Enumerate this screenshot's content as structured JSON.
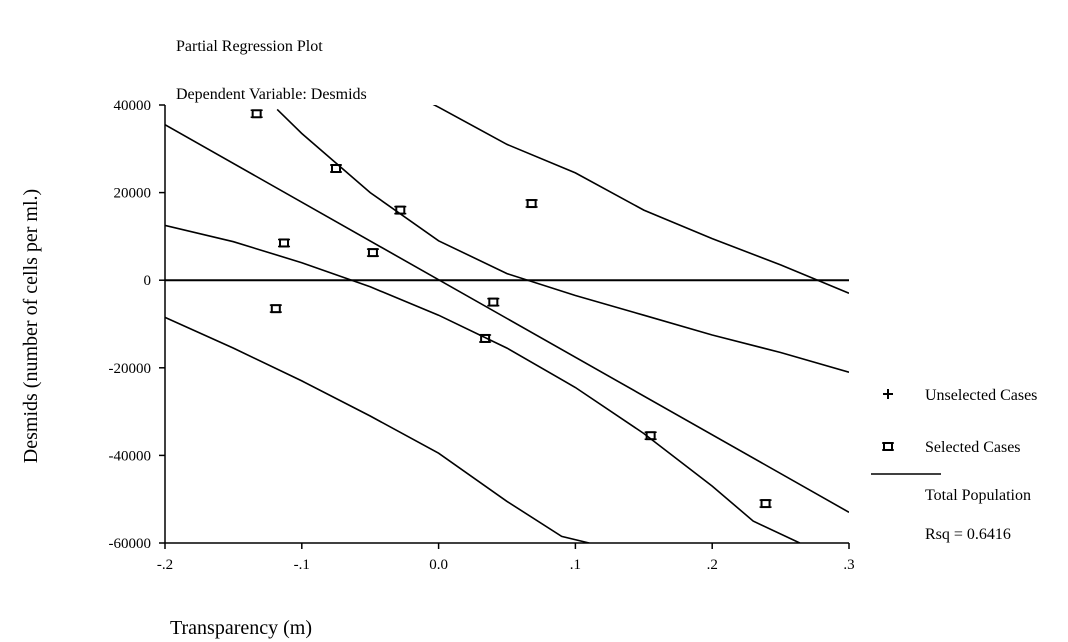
{
  "chart_data": {
    "type": "scatter",
    "title": "Partial Regression Plot",
    "subtitle": "Dependent Variable: Desmids",
    "xlabel": "Transparency (m)",
    "ylabel": "Desmids (number of cells per ml.)",
    "xlim": [
      -0.2,
      0.3
    ],
    "ylim": [
      -60000,
      40000
    ],
    "x_ticks": [
      {
        "value": -0.2,
        "label": "-.2"
      },
      {
        "value": -0.1,
        "label": "-.1"
      },
      {
        "value": 0.0,
        "label": "0.0"
      },
      {
        "value": 0.1,
        "label": ".1"
      },
      {
        "value": 0.2,
        "label": ".2"
      },
      {
        "value": 0.3,
        "label": ".3"
      }
    ],
    "y_ticks": [
      {
        "value": 40000,
        "label": "40000"
      },
      {
        "value": 20000,
        "label": "20000"
      },
      {
        "value": 0,
        "label": "0"
      },
      {
        "value": -20000,
        "label": "-20000"
      },
      {
        "value": -40000,
        "label": "-40000"
      },
      {
        "value": -60000,
        "label": "-60000"
      }
    ],
    "reference_line_y": 0,
    "points": [
      {
        "x": -0.133,
        "y": 38000
      },
      {
        "x": -0.075,
        "y": 25500
      },
      {
        "x": -0.028,
        "y": 16000
      },
      {
        "x": 0.068,
        "y": 17500
      },
      {
        "x": -0.113,
        "y": 8500
      },
      {
        "x": -0.048,
        "y": 6300
      },
      {
        "x": -0.119,
        "y": -6500
      },
      {
        "x": 0.04,
        "y": -5000
      },
      {
        "x": 0.034,
        "y": -13300
      },
      {
        "x": 0.155,
        "y": -35500
      },
      {
        "x": 0.239,
        "y": -51000
      }
    ],
    "fit_line": [
      {
        "x": -0.2,
        "y": 35500
      },
      {
        "x": 0.3,
        "y": -53000
      }
    ],
    "mean_ci_upper": [
      {
        "x": -0.2,
        "y": 12500
      },
      {
        "x": -0.15,
        "y": 8800
      },
      {
        "x": -0.1,
        "y": 4000
      },
      {
        "x": -0.05,
        "y": -1500
      },
      {
        "x": 0.0,
        "y": -8000
      },
      {
        "x": 0.05,
        "y": -15500
      },
      {
        "x": 0.1,
        "y": -24500
      },
      {
        "x": 0.15,
        "y": -35000
      },
      {
        "x": 0.2,
        "y": -47000
      },
      {
        "x": 0.23,
        "y": -55000
      },
      {
        "x": 0.264,
        "y": -60000
      }
    ],
    "mean_ci_lower": [
      {
        "x": -0.118,
        "y": 39000
      },
      {
        "x": -0.1,
        "y": 33500
      },
      {
        "x": -0.05,
        "y": 20000
      },
      {
        "x": 0.0,
        "y": 9000
      },
      {
        "x": 0.05,
        "y": 1500
      },
      {
        "x": 0.1,
        "y": -3500
      },
      {
        "x": 0.15,
        "y": -8000
      },
      {
        "x": 0.2,
        "y": -12500
      },
      {
        "x": 0.25,
        "y": -16500
      },
      {
        "x": 0.3,
        "y": -21000
      }
    ],
    "pred_upper": [
      {
        "x": -0.05,
        "y": 47500
      },
      {
        "x": 0.0,
        "y": 39500
      },
      {
        "x": 0.05,
        "y": 31000
      },
      {
        "x": 0.1,
        "y": 24500
      },
      {
        "x": 0.15,
        "y": 16000
      },
      {
        "x": 0.2,
        "y": 9500
      },
      {
        "x": 0.25,
        "y": 3500
      },
      {
        "x": 0.3,
        "y": -3000
      }
    ],
    "pred_lower": [
      {
        "x": -0.2,
        "y": -8500
      },
      {
        "x": -0.15,
        "y": -15500
      },
      {
        "x": -0.1,
        "y": -23000
      },
      {
        "x": -0.05,
        "y": -31000
      },
      {
        "x": 0.0,
        "y": -39500
      },
      {
        "x": 0.05,
        "y": -50500
      },
      {
        "x": 0.09,
        "y": -58500
      },
      {
        "x": 0.11,
        "y": -60000
      }
    ],
    "legend": {
      "placement": "right",
      "entries": [
        {
          "symbol": "plus",
          "label": "Unselected Cases"
        },
        {
          "symbol": "square",
          "label": "Selected Cases"
        },
        {
          "symbol": "line",
          "label": "Total Population"
        }
      ],
      "rsq_label": "Rsq = 0.6416"
    }
  }
}
